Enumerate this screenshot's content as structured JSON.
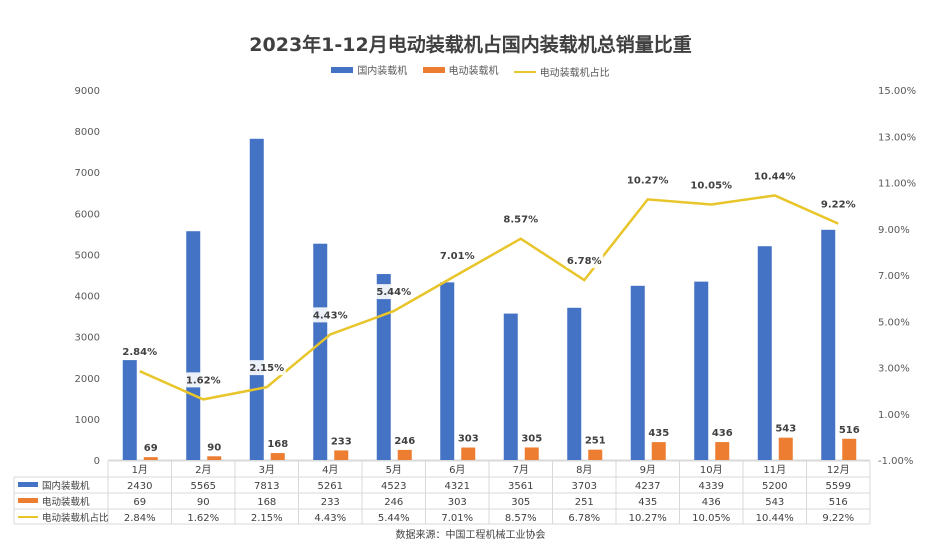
{
  "chart_data": {
    "type": "bar+line",
    "title": "2023年1-12月电动装载机占国内装载机总销量比重",
    "categories": [
      "1月",
      "2月",
      "3月",
      "4月",
      "5月",
      "6月",
      "7月",
      "8月",
      "9月",
      "10月",
      "11月",
      "12月"
    ],
    "series": [
      {
        "name": "国内装载机",
        "type": "bar",
        "axis": "left",
        "color": "#4472C4",
        "values": [
          2430,
          5565,
          7813,
          5261,
          4523,
          4321,
          3561,
          3703,
          4237,
          4339,
          5200,
          5599
        ]
      },
      {
        "name": "电动装载机",
        "type": "bar",
        "axis": "left",
        "color": "#ED7D31",
        "values": [
          69,
          90,
          168,
          233,
          246,
          303,
          305,
          251,
          435,
          436,
          543,
          516
        ]
      },
      {
        "name": "电动装载机占比",
        "type": "line",
        "axis": "right",
        "color": "#E8C52A",
        "values": [
          2.84,
          1.62,
          2.15,
          4.43,
          5.44,
          7.01,
          8.57,
          6.78,
          10.27,
          10.05,
          10.44,
          9.22
        ]
      }
    ],
    "left_axis": {
      "ylim": [
        0,
        9000
      ],
      "ticks": [
        "0",
        "1000",
        "2000",
        "3000",
        "4000",
        "5000",
        "6000",
        "7000",
        "8000",
        "9000"
      ]
    },
    "right_axis": {
      "ylim": [
        -1,
        15
      ],
      "ticks": [
        "-1.00%",
        "1.00%",
        "3.00%",
        "5.00%",
        "7.00%",
        "9.00%",
        "11.00%",
        "13.00%",
        "15.00%"
      ]
    },
    "table_cells": {
      "s0": [
        "2430",
        "5565",
        "7813",
        "5261",
        "4523",
        "4321",
        "3561",
        "3703",
        "4237",
        "4339",
        "5200",
        "5599"
      ],
      "s1": [
        "69",
        "90",
        "168",
        "233",
        "246",
        "303",
        "305",
        "251",
        "435",
        "436",
        "543",
        "516"
      ],
      "s2": [
        "2.84%",
        "1.62%",
        "2.15%",
        "4.43%",
        "5.44%",
        "7.01%",
        "8.57%",
        "6.78%",
        "10.27%",
        "10.05%",
        "10.44%",
        "9.22%"
      ]
    },
    "legend_position": "top",
    "grid": false
  },
  "source": "数据来源：中国工程机械工业协会"
}
